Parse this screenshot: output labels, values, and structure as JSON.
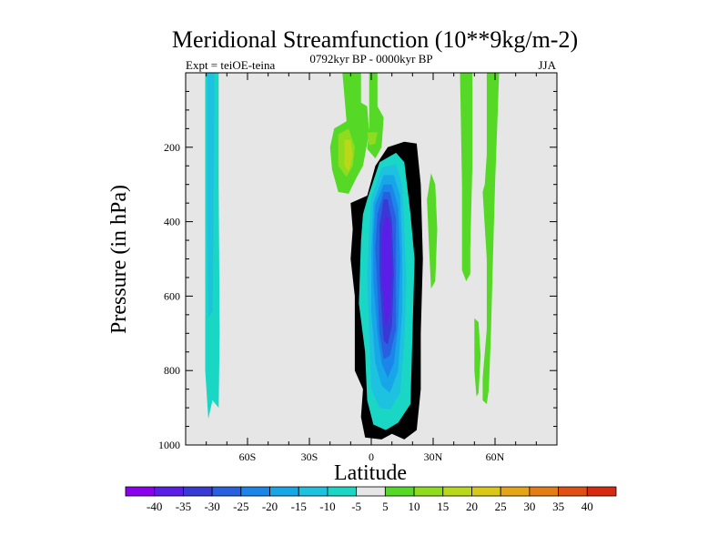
{
  "chart_data": {
    "type": "contour",
    "title": "Meridional Streamfunction (10**9kg/m-2)",
    "subtitle_left": "Expt = teiOE-teina",
    "subtitle_center": "0792kyr BP - 0000kyr BP",
    "subtitle_right": "JJA",
    "xlabel": "Latitude",
    "ylabel": "Pressure (in hPa)",
    "xlim": [
      -90,
      90
    ],
    "ylim": [
      1000,
      0
    ],
    "x_ticks": [
      {
        "value": -60,
        "label": "60S"
      },
      {
        "value": -30,
        "label": "30S"
      },
      {
        "value": 0,
        "label": "0"
      },
      {
        "value": 30,
        "label": "30N"
      },
      {
        "value": 60,
        "label": "60N"
      }
    ],
    "y_ticks": [
      {
        "value": 200,
        "label": "200"
      },
      {
        "value": 400,
        "label": "400"
      },
      {
        "value": 600,
        "label": "600"
      },
      {
        "value": 800,
        "label": "800"
      },
      {
        "value": 1000,
        "label": "1000"
      }
    ],
    "background_color": "#e6e6e6",
    "colorbar": {
      "labels": [
        "-40",
        "-35",
        "-30",
        "-25",
        "-20",
        "-15",
        "-10",
        "-5",
        "5",
        "10",
        "15",
        "20",
        "25",
        "30",
        "35",
        "40"
      ],
      "colors": [
        "#8b00ee",
        "#5b1ee6",
        "#3939d6",
        "#2860e0",
        "#1a86ea",
        "#17a7e8",
        "#1cc2e0",
        "#1ad6c4",
        "#e6e6e6",
        "#55d826",
        "#8fdc1e",
        "#b9d81a",
        "#d9c818",
        "#e6a516",
        "#e47e14",
        "#e05012",
        "#d82a10"
      ]
    },
    "features": [
      {
        "name": "southern-polar-negative-column",
        "level_range": [
          -10,
          -5
        ],
        "lat_range": [
          -80,
          -74
        ],
        "pressure_range": [
          10,
          920
        ]
      },
      {
        "name": "southern-polar-inner-column",
        "level_range": [
          -15,
          -10
        ],
        "lat_range": [
          -79,
          -76
        ],
        "pressure_range": [
          10,
          650
        ]
      },
      {
        "name": "upper-positive-cells",
        "level_range": [
          5,
          15
        ],
        "lat_range": [
          -20,
          2
        ],
        "pressure_range": [
          10,
          320
        ]
      },
      {
        "name": "upper-positive-cell-core",
        "level_range": [
          15,
          20
        ],
        "lat_range": [
          -13,
          -9
        ],
        "pressure_range": [
          180,
          270
        ]
      },
      {
        "name": "hadley-cell-negative",
        "level_range": [
          -40,
          -5
        ],
        "lat_range": [
          -12,
          24
        ],
        "pressure_range": [
          180,
          985
        ]
      },
      {
        "name": "hadley-cell-minimum",
        "level": -40,
        "lat": 7,
        "pressure": 550
      },
      {
        "name": "subtropical-positive-strip",
        "level_range": [
          5,
          10
        ],
        "lat_range": [
          27,
          32
        ],
        "pressure_range": [
          270,
          580
        ]
      },
      {
        "name": "midlatitude-positive-column",
        "level_range": [
          5,
          10
        ],
        "lat_range": [
          43,
          49
        ],
        "pressure_range": [
          10,
          560
        ]
      },
      {
        "name": "midlatitude-positive-streak",
        "level_range": [
          5,
          10
        ],
        "lat_range": [
          49,
          53
        ],
        "pressure_range": [
          660,
          870
        ]
      },
      {
        "name": "northern-positive-column",
        "level_range": [
          5,
          10
        ],
        "lat_range": [
          56,
          62
        ],
        "pressure_range": [
          10,
          890
        ]
      },
      {
        "name": "northern-positive-branch",
        "level_range": [
          5,
          10
        ],
        "lat_range": [
          48,
          62
        ],
        "pressure_range": [
          300,
          890
        ]
      }
    ]
  }
}
